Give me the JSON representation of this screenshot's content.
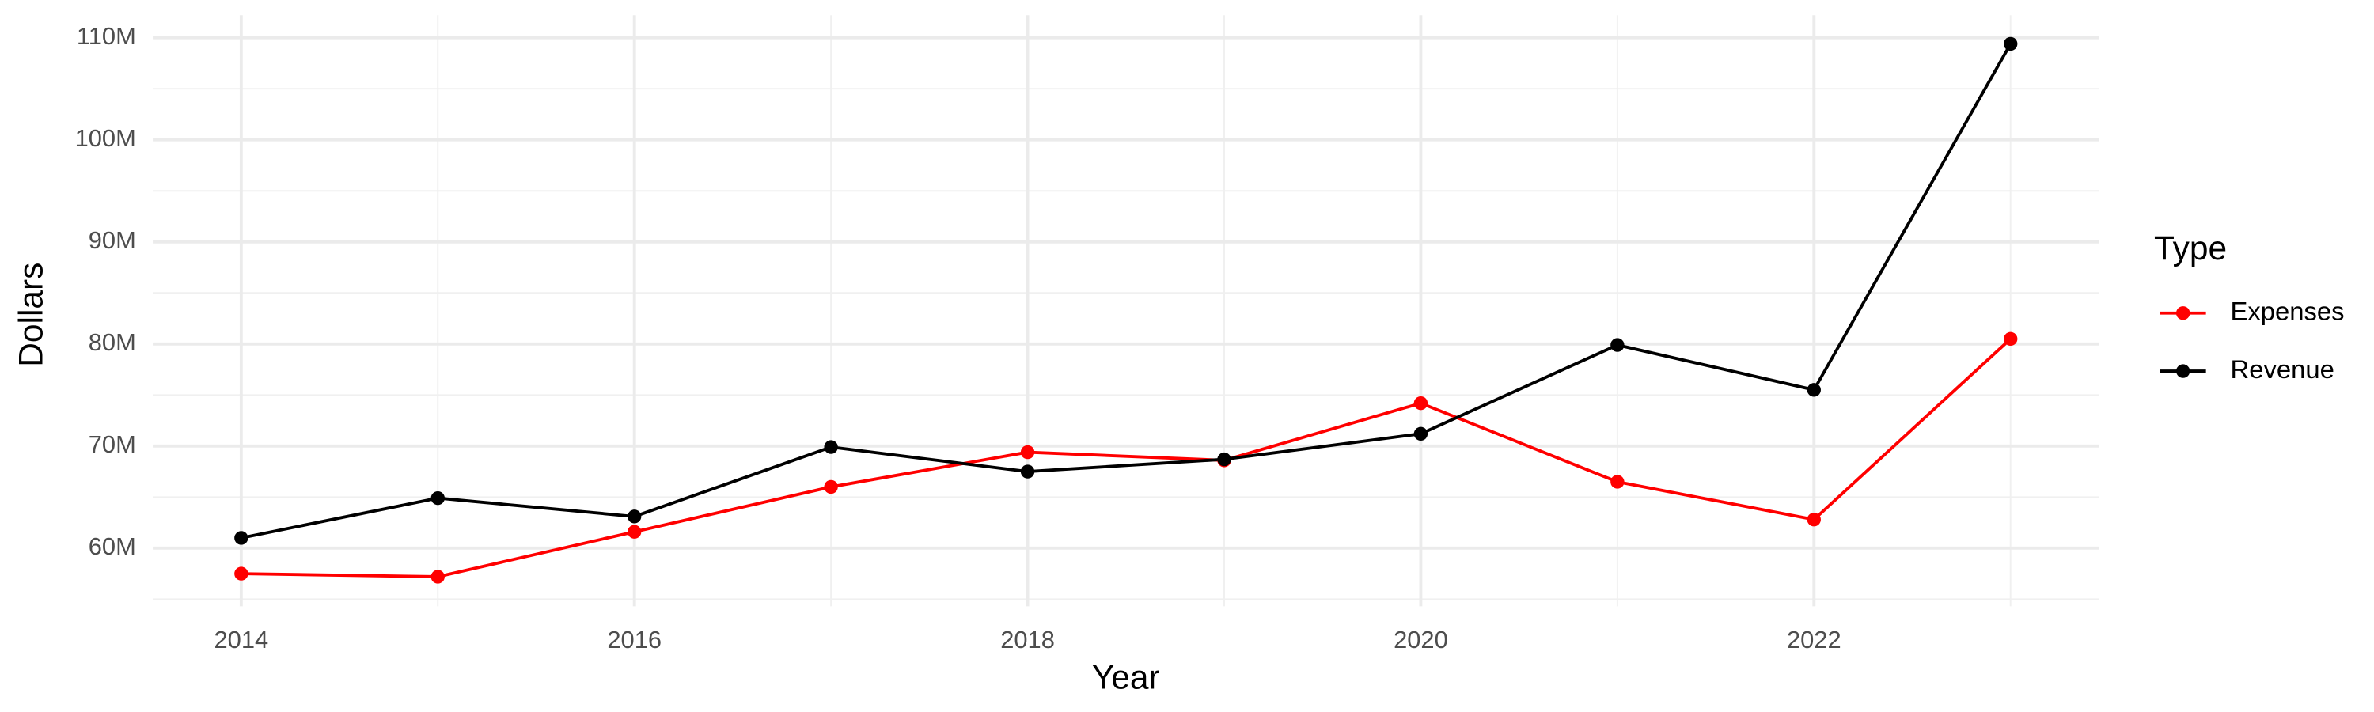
{
  "chart_data": {
    "type": "line",
    "x_label": "Year",
    "y_label": "Dollars",
    "x": [
      2014,
      2015,
      2016,
      2017,
      2018,
      2019,
      2020,
      2021,
      2022,
      2023
    ],
    "series": [
      {
        "name": "Expenses",
        "color": "#ff0000",
        "values": [
          57500000,
          57200000,
          61600000,
          66000000,
          69400000,
          68600000,
          74200000,
          66500000,
          62800000,
          80500000
        ]
      },
      {
        "name": "Revenue",
        "color": "#000000",
        "values": [
          61000000,
          64900000,
          63100000,
          69900000,
          67500000,
          68700000,
          71200000,
          79900000,
          75500000,
          109400000
        ]
      }
    ],
    "xlim": [
      2013.55,
      2023.45
    ],
    "xticks": [
      2014,
      2016,
      2018,
      2020,
      2022
    ],
    "ylim": [
      54300000,
      112200000
    ],
    "yticks": [
      {
        "value": 60000000,
        "label": "60M"
      },
      {
        "value": 70000000,
        "label": "70M"
      },
      {
        "value": 80000000,
        "label": "80M"
      },
      {
        "value": 90000000,
        "label": "90M"
      },
      {
        "value": 100000000,
        "label": "100M"
      },
      {
        "value": 110000000,
        "label": "110M"
      }
    ],
    "grid": true,
    "legend_title": "Type",
    "legend_position": "right"
  }
}
